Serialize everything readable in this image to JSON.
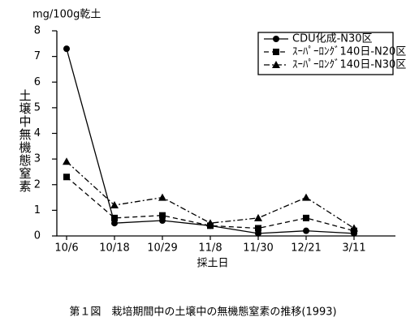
{
  "chart_data": {
    "type": "line",
    "title": "第１図　栽培期間中の土壌中の無機態窒素の推移(1993)",
    "unit_label": "mg/100g乾土",
    "y_label": "土壌中無機態窒素",
    "x_label": "採土日",
    "categories": [
      "10/6",
      "10/18",
      "10/29",
      "11/8",
      "11/30",
      "12/21",
      "3/11"
    ],
    "series": [
      {
        "name": "CDU化成-N30区",
        "color": "#000000",
        "marker": "circle",
        "line_style": "solid",
        "values": [
          7.3,
          0.5,
          0.6,
          0.4,
          0.1,
          0.2,
          0.1
        ]
      },
      {
        "name": "ｽｰﾊﾟｰﾛﾝｸﾞ140日-N20区",
        "color": "#000000",
        "marker": "square",
        "line_style": "dashed",
        "values": [
          2.3,
          0.7,
          0.8,
          0.4,
          0.3,
          0.7,
          0.2
        ]
      },
      {
        "name": "ｽｰﾊﾟｰﾛﾝｸﾞ140日-N30区",
        "color": "#000000",
        "marker": "triangle",
        "line_style": "dashdot",
        "values": [
          2.9,
          1.2,
          1.5,
          0.5,
          0.7,
          1.5,
          0.3
        ]
      }
    ],
    "ylim": [
      0,
      8
    ],
    "yticks": [
      0,
      1,
      2,
      3,
      4,
      5,
      6,
      7,
      8
    ],
    "legend": "upper right"
  }
}
